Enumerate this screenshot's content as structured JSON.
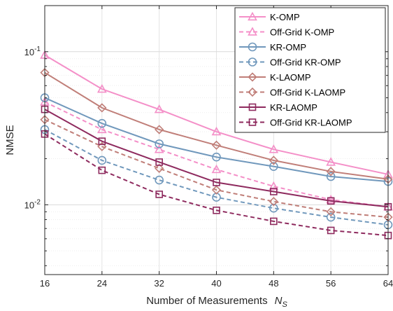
{
  "chart_data": {
    "type": "line",
    "title": "",
    "xlabel": "Number of Measurements",
    "xlabel_symbol": "N",
    "xlabel_subscript": "S",
    "ylabel": "NMSE",
    "x": [
      16,
      24,
      32,
      40,
      48,
      56,
      64
    ],
    "x_ticks": [
      "16",
      "24",
      "32",
      "40",
      "48",
      "56",
      "64"
    ],
    "xlim": [
      16,
      64
    ],
    "yscale": "log",
    "ylim": [
      0.0035,
      0.2
    ],
    "y_ticks": [
      {
        "value": 0.1,
        "base": "10",
        "exp": "-1"
      },
      {
        "value": 0.01,
        "base": "10",
        "exp": "-2"
      }
    ],
    "grid": true,
    "legend_position": "top-right",
    "series": [
      {
        "name": "K-OMP",
        "color": "#f48fc8",
        "dash": false,
        "marker": "triangle",
        "values": [
          0.095,
          0.057,
          0.042,
          0.03,
          0.023,
          0.019,
          0.0158
        ]
      },
      {
        "name": "Off-Grid K-OMP",
        "color": "#f48fc8",
        "dash": true,
        "marker": "triangle",
        "values": [
          0.047,
          0.031,
          0.023,
          0.017,
          0.0132,
          0.0108,
          0.0097
        ]
      },
      {
        "name": "KR-OMP",
        "color": "#7098bc",
        "dash": false,
        "marker": "circle",
        "values": [
          0.05,
          0.034,
          0.025,
          0.0205,
          0.0178,
          0.0153,
          0.0142
        ]
      },
      {
        "name": "Off-Grid KR-OMP",
        "color": "#7098bc",
        "dash": true,
        "marker": "circle",
        "values": [
          0.031,
          0.0195,
          0.0145,
          0.0112,
          0.0095,
          0.0083,
          0.0074
        ]
      },
      {
        "name": "K-LAOMP",
        "color": "#c07e78",
        "dash": false,
        "marker": "diamond",
        "values": [
          0.073,
          0.043,
          0.031,
          0.0245,
          0.0195,
          0.0165,
          0.0147
        ]
      },
      {
        "name": "Off-Grid K-LAOMP",
        "color": "#c07e78",
        "dash": true,
        "marker": "diamond",
        "values": [
          0.036,
          0.024,
          0.0173,
          0.0125,
          0.0105,
          0.009,
          0.0083
        ]
      },
      {
        "name": "KR-LAOMP",
        "color": "#8e2a5e",
        "dash": false,
        "marker": "square",
        "values": [
          0.042,
          0.026,
          0.019,
          0.014,
          0.0122,
          0.0106,
          0.0097
        ]
      },
      {
        "name": "Off-Grid KR-LAOMP",
        "color": "#8e2a5e",
        "dash": true,
        "marker": "square",
        "values": [
          0.029,
          0.0168,
          0.0117,
          0.0092,
          0.0078,
          0.0068,
          0.0063
        ]
      }
    ]
  }
}
